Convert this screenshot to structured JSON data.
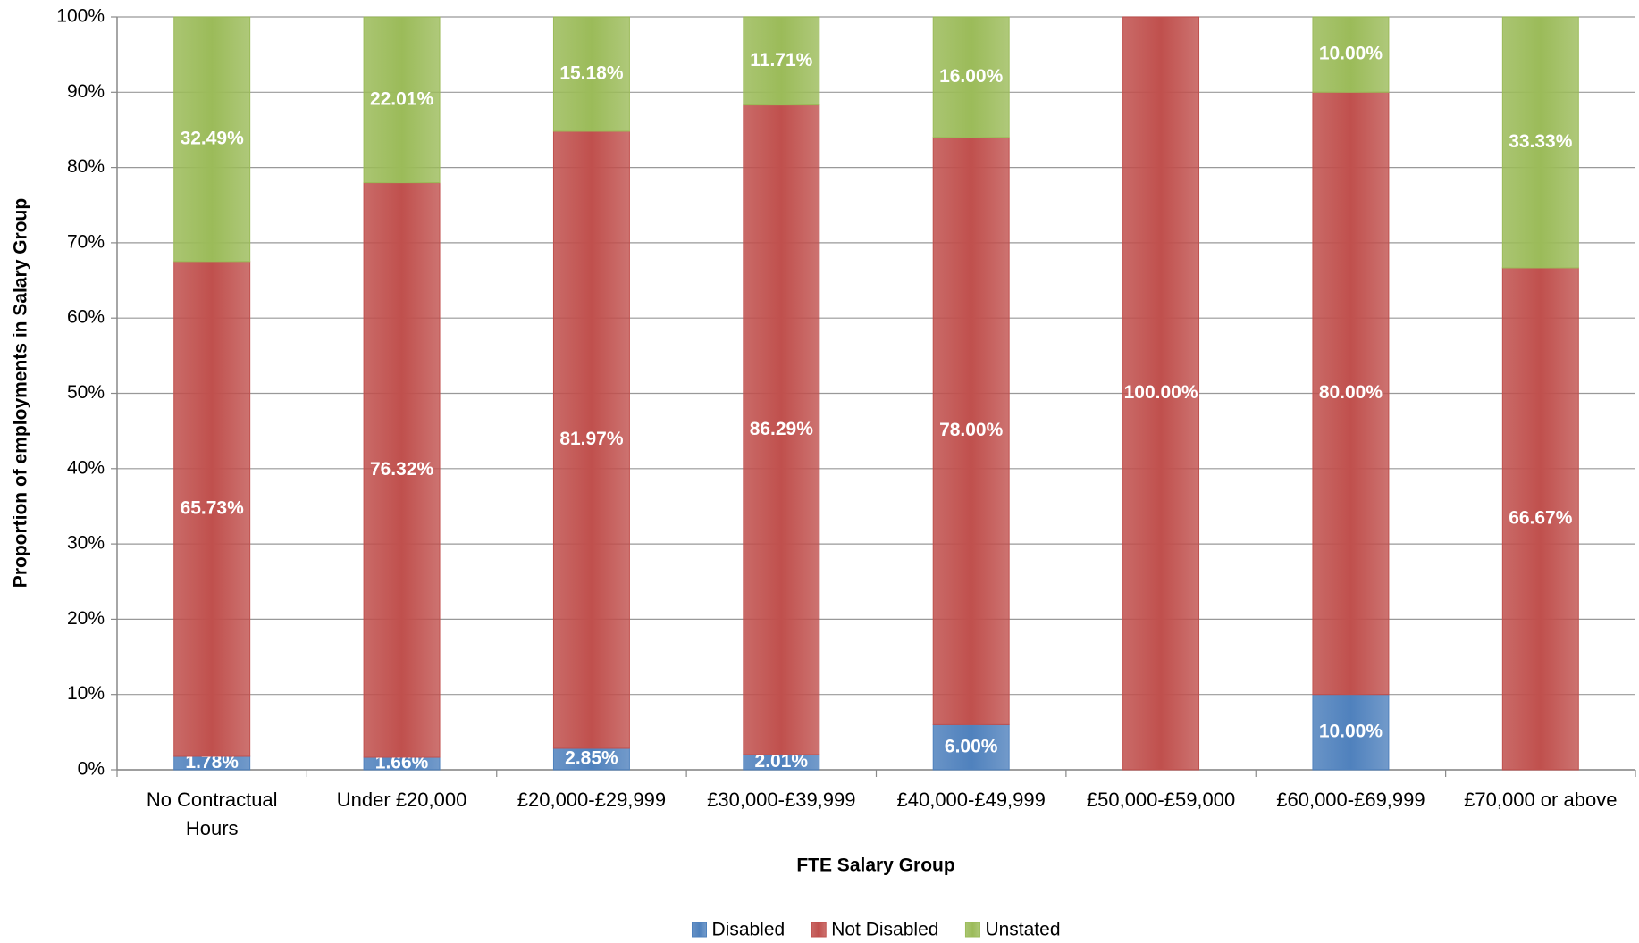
{
  "chart_data": {
    "type": "stacked_bar",
    "x_label": "FTE Salary Group",
    "y_label": "Proportion of employments in Salary Group",
    "categories": [
      "No Contractual Hours",
      "Under £20,000",
      "£20,000-£29,999",
      "£30,000-£39,999",
      "£40,000-£49,999",
      "£50,000-£59,000",
      "£60,000-£69,999",
      "£70,000 or above"
    ],
    "series": [
      {
        "name": "Disabled",
        "color": "#4f81bd",
        "values": [
          1.78,
          1.66,
          2.85,
          2.01,
          6.0,
          0,
          10.0,
          0
        ],
        "value_labels": [
          "1.78%",
          "1.66%",
          "2.85%",
          "2.01%",
          "6.00%",
          null,
          "10.00%",
          null
        ]
      },
      {
        "name": "Not Disabled",
        "color": "#c0504d",
        "values": [
          65.73,
          76.32,
          81.97,
          86.29,
          78.0,
          100.0,
          80.0,
          66.67
        ],
        "value_labels": [
          "65.73%",
          "76.32%",
          "81.97%",
          "86.29%",
          "78.00%",
          "100.00%",
          "80.00%",
          "66.67%"
        ]
      },
      {
        "name": "Unstated",
        "color": "#9bbb59",
        "values": [
          32.49,
          22.01,
          15.18,
          11.71,
          16.0,
          0,
          10.0,
          33.33
        ],
        "value_labels": [
          "32.49%",
          "22.01%",
          "15.18%",
          "11.71%",
          "16.00%",
          null,
          "10.00%",
          "33.33%"
        ]
      }
    ],
    "ylim": [
      0,
      100
    ],
    "yticks": [
      {
        "value": 0,
        "label": "0%"
      },
      {
        "value": 10,
        "label": "10%"
      },
      {
        "value": 20,
        "label": "20%"
      },
      {
        "value": 30,
        "label": "30%"
      },
      {
        "value": 40,
        "label": "40%"
      },
      {
        "value": 50,
        "label": "50%"
      },
      {
        "value": 60,
        "label": "60%"
      },
      {
        "value": 70,
        "label": "70%"
      },
      {
        "value": 80,
        "label": "80%"
      },
      {
        "value": 90,
        "label": "90%"
      },
      {
        "value": 100,
        "label": "100%"
      }
    ],
    "grid": true,
    "legend": "bottom"
  }
}
